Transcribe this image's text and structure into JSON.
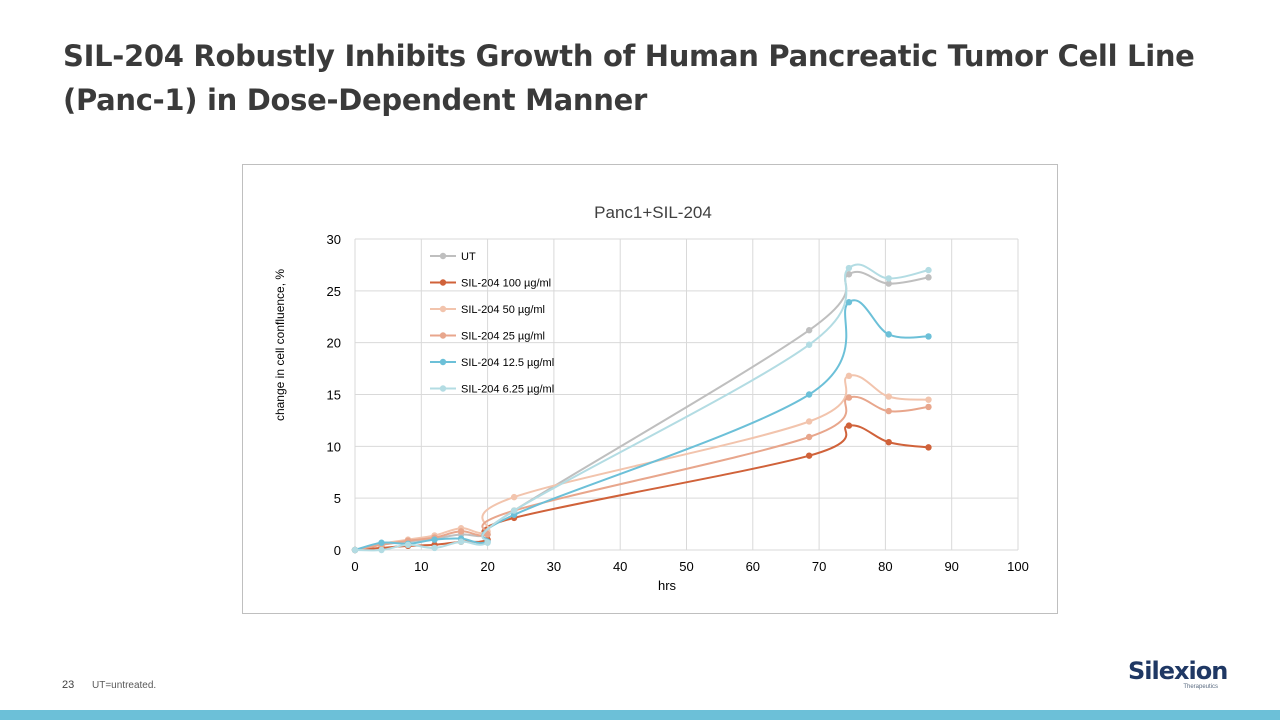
{
  "slide": {
    "title_line1": "SIL-204 Robustly Inhibits Growth of Human Pancreatic Tumor Cell Line",
    "title_line2": "(Panc-1)  in Dose-Dependent Manner",
    "page_number": "23",
    "footnote": "UT=untreated.",
    "logo": {
      "name": "Silexion",
      "tagline": "Therapeutics"
    },
    "bottom_bar_color": "#6cc0d8"
  },
  "chart_data": {
    "type": "line",
    "title": "Panc1+SIL-204",
    "xlabel": "hrs",
    "ylabel": "change in cell confluence, %",
    "xlim": [
      0,
      100
    ],
    "ylim": [
      0,
      30
    ],
    "xticks": [
      0,
      10,
      20,
      30,
      40,
      50,
      60,
      70,
      80,
      90,
      100
    ],
    "yticks": [
      0,
      5,
      10,
      15,
      20,
      25,
      30
    ],
    "grid": true,
    "legend_position": "top-left",
    "x": [
      0,
      4,
      8,
      12,
      16,
      20,
      24,
      68.5,
      74.5,
      80.5,
      86.5
    ],
    "series": [
      {
        "name": "UT",
        "color": "#bfbfbf",
        "values": [
          0,
          0.5,
          0.8,
          1.1,
          1.5,
          1.5,
          3.8,
          21.2,
          26.6,
          25.7,
          26.3
        ]
      },
      {
        "name": "SIL-204 100 µg/ml",
        "color": "#d0623a",
        "values": [
          0,
          0.2,
          0.4,
          0.5,
          0.8,
          1.0,
          3.1,
          9.1,
          12.0,
          10.4,
          9.9
        ]
      },
      {
        "name": "SIL-204 50 µg/ml",
        "color": "#f2c4ad",
        "values": [
          0,
          0.6,
          1.0,
          1.4,
          2.1,
          1.8,
          5.1,
          12.4,
          16.8,
          14.8,
          14.5
        ]
      },
      {
        "name": "SIL-204 25 µg/ml",
        "color": "#e8a68c",
        "values": [
          0,
          0.5,
          0.9,
          1.2,
          1.8,
          1.5,
          3.8,
          10.9,
          14.7,
          13.4,
          13.8
        ]
      },
      {
        "name": "SIL-204 12.5 µg/ml",
        "color": "#6cc0d8",
        "values": [
          0,
          0.7,
          0.6,
          1.0,
          1.1,
          0.8,
          3.4,
          15.0,
          23.9,
          20.8,
          20.6
        ]
      },
      {
        "name": "SIL-204 6.25 µg/ml",
        "color": "#b3dce3",
        "values": [
          0,
          0.0,
          0.5,
          0.2,
          0.8,
          0.7,
          3.8,
          19.8,
          27.2,
          26.2,
          27.0
        ]
      }
    ]
  }
}
